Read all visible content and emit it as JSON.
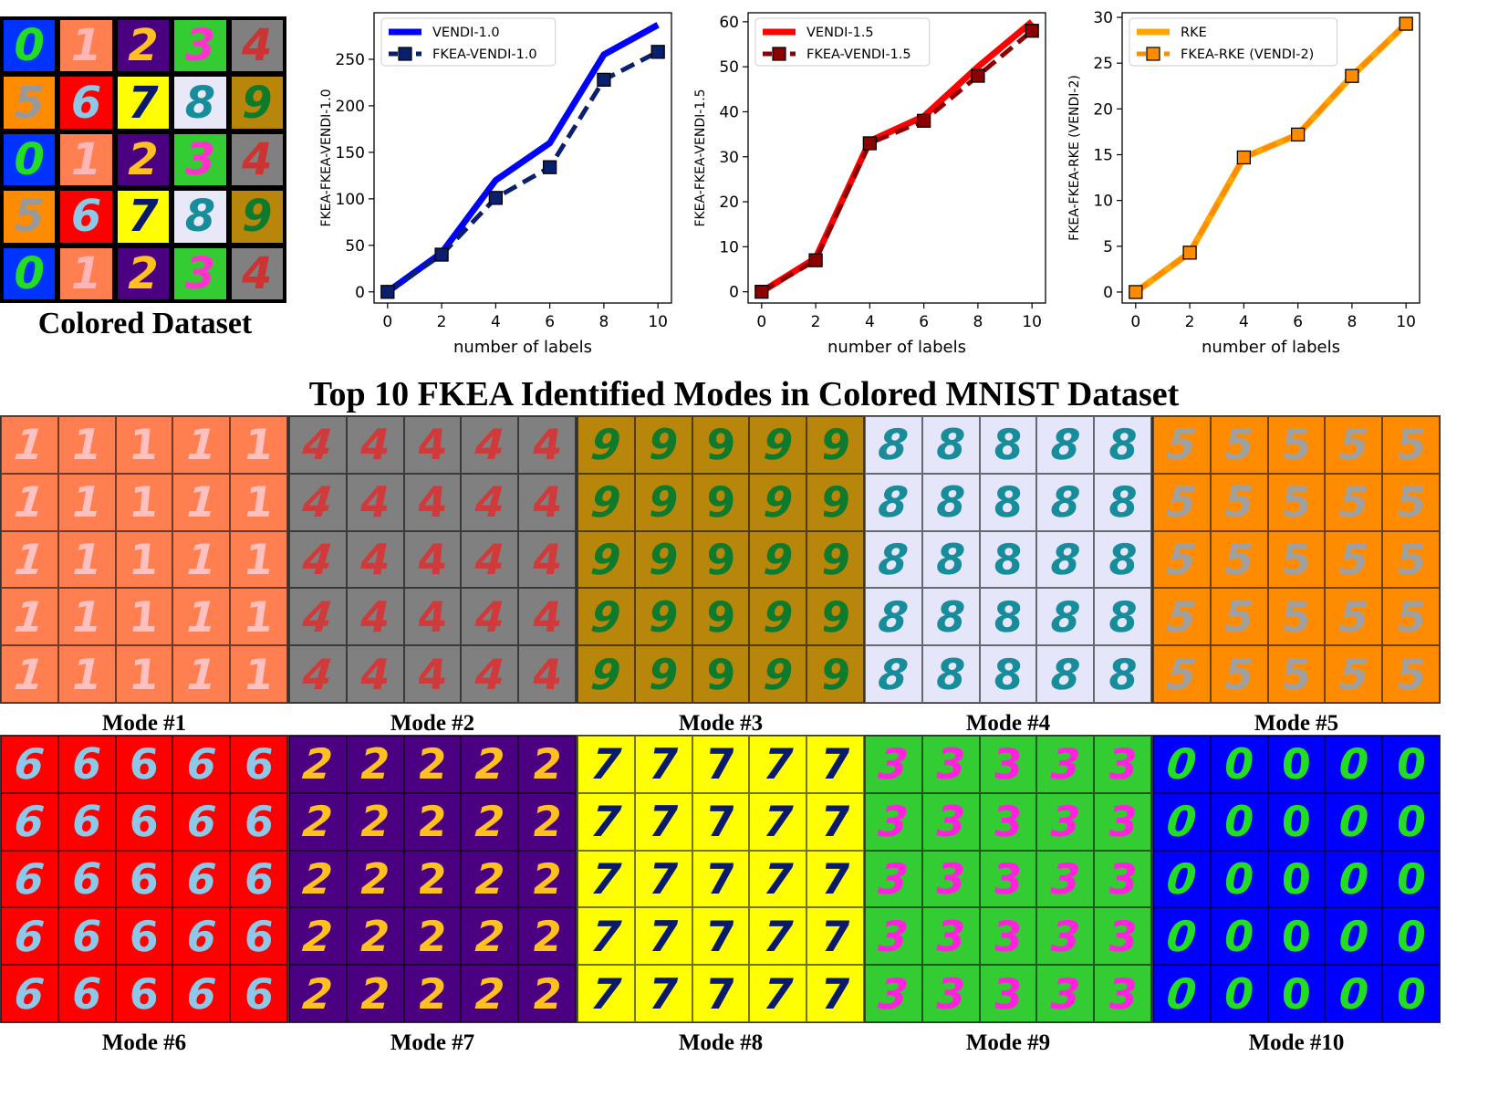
{
  "dataset": {
    "caption": "Colored Dataset",
    "cells": [
      {
        "digit": "0",
        "bg": "#0033ff",
        "fg": "#22dd22"
      },
      {
        "digit": "1",
        "bg": "#ff7f50",
        "fg": "#ffb6b6"
      },
      {
        "digit": "2",
        "bg": "#4b0082",
        "fg": "#ffc020"
      },
      {
        "digit": "3",
        "bg": "#33cc33",
        "fg": "#ff33cc"
      },
      {
        "digit": "4",
        "bg": "#808080",
        "fg": "#cc3333"
      },
      {
        "digit": "5",
        "bg": "#ff8c00",
        "fg": "#999999"
      },
      {
        "digit": "6",
        "bg": "#ff0000",
        "fg": "#8ec8e8"
      },
      {
        "digit": "7",
        "bg": "#ffff00",
        "fg": "#0a1a6a"
      },
      {
        "digit": "8",
        "bg": "#e8e8f8",
        "fg": "#178c9a"
      },
      {
        "digit": "9",
        "bg": "#b8860b",
        "fg": "#0d7a2c"
      },
      {
        "digit": "0",
        "bg": "#0033ff",
        "fg": "#22dd22"
      },
      {
        "digit": "1",
        "bg": "#ff7f50",
        "fg": "#ffb6b6"
      },
      {
        "digit": "2",
        "bg": "#4b0082",
        "fg": "#ffc020"
      },
      {
        "digit": "3",
        "bg": "#33cc33",
        "fg": "#ff33cc"
      },
      {
        "digit": "4",
        "bg": "#808080",
        "fg": "#cc3333"
      },
      {
        "digit": "5",
        "bg": "#ff8c00",
        "fg": "#999999"
      },
      {
        "digit": "6",
        "bg": "#ff0000",
        "fg": "#8ec8e8"
      },
      {
        "digit": "7",
        "bg": "#ffff00",
        "fg": "#0a1a6a"
      },
      {
        "digit": "8",
        "bg": "#e8e8f8",
        "fg": "#178c9a"
      },
      {
        "digit": "9",
        "bg": "#b8860b",
        "fg": "#0d7a2c"
      },
      {
        "digit": "0",
        "bg": "#0033ff",
        "fg": "#22dd22"
      },
      {
        "digit": "1",
        "bg": "#ff7f50",
        "fg": "#ffb6b6"
      },
      {
        "digit": "2",
        "bg": "#4b0082",
        "fg": "#ffc020"
      },
      {
        "digit": "3",
        "bg": "#33cc33",
        "fg": "#ff33cc"
      },
      {
        "digit": "4",
        "bg": "#808080",
        "fg": "#cc3333"
      }
    ]
  },
  "title": "Top 10 FKEA Identified Modes in Colored MNIST Dataset",
  "chart_data": [
    {
      "type": "line",
      "title": "",
      "xlabel": "number of labels",
      "ylabel": "FKEA-FKEA-VENDI-1.0",
      "x": [
        0,
        2,
        4,
        6,
        8,
        10
      ],
      "xlim": [
        -0.5,
        10.5
      ],
      "ylim": [
        -12,
        300
      ],
      "xticks": [
        0,
        2,
        4,
        6,
        8,
        10
      ],
      "yticks": [
        0,
        50,
        100,
        150,
        200,
        250
      ],
      "legend": "top-left",
      "series": [
        {
          "name": "VENDI-1.0",
          "values": [
            0,
            42,
            120,
            160,
            255,
            287
          ],
          "color": "#0000ff",
          "style": "solid",
          "marker": "none"
        },
        {
          "name": "FKEA-VENDI-1.0",
          "values": [
            0,
            40,
            101,
            134,
            228,
            258
          ],
          "color": "#0a1f6e",
          "style": "dashed",
          "marker": "square"
        }
      ]
    },
    {
      "type": "line",
      "title": "",
      "xlabel": "number of labels",
      "ylabel": "FKEA-FKEA-VENDI-1.5",
      "x": [
        0,
        2,
        4,
        6,
        8,
        10
      ],
      "xlim": [
        -0.5,
        10.5
      ],
      "ylim": [
        -2.5,
        62
      ],
      "xticks": [
        0,
        2,
        4,
        6,
        8,
        10
      ],
      "yticks": [
        0,
        10,
        20,
        30,
        40,
        50,
        60
      ],
      "legend": "top-left",
      "series": [
        {
          "name": "VENDI-1.5",
          "values": [
            0,
            7.5,
            33.5,
            39,
            50,
            60
          ],
          "color": "#ff0000",
          "style": "solid",
          "marker": "none"
        },
        {
          "name": "FKEA-VENDI-1.5",
          "values": [
            0,
            7,
            33,
            38,
            48,
            58
          ],
          "color": "#8b0000",
          "style": "dashed",
          "marker": "square"
        }
      ]
    },
    {
      "type": "line",
      "title": "",
      "xlabel": "number of labels",
      "ylabel": "FKEA-FKEA-RKE (VENDI-2)",
      "x": [
        0,
        2,
        4,
        6,
        8,
        10
      ],
      "xlim": [
        -0.5,
        10.5
      ],
      "ylim": [
        -1.2,
        30.5
      ],
      "xticks": [
        0,
        2,
        4,
        6,
        8,
        10
      ],
      "yticks": [
        0,
        5,
        10,
        15,
        20,
        25,
        30
      ],
      "legend": "top-left",
      "series": [
        {
          "name": "RKE",
          "values": [
            0,
            4.3,
            14.7,
            17.2,
            23.6,
            29.3
          ],
          "color": "#ffa500",
          "style": "solid",
          "marker": "none"
        },
        {
          "name": "FKEA-RKE (VENDI-2)",
          "values": [
            0,
            4.3,
            14.7,
            17.2,
            23.6,
            29.3
          ],
          "color": "#ff8c00",
          "style": "dashed",
          "marker": "square"
        }
      ]
    }
  ],
  "modes": [
    {
      "label": "Mode #1",
      "digit": "1",
      "bg": "#ff7f50",
      "fg": "#ffc0c0"
    },
    {
      "label": "Mode #2",
      "digit": "4",
      "bg": "#808080",
      "fg": "#d03a3a"
    },
    {
      "label": "Mode #3",
      "digit": "9",
      "bg": "#b8860b",
      "fg": "#0d7a2c"
    },
    {
      "label": "Mode #4",
      "digit": "8",
      "bg": "#e6e6fa",
      "fg": "#178c9a"
    },
    {
      "label": "Mode #5",
      "digit": "5",
      "bg": "#ff8c00",
      "fg": "#a0a0a0"
    },
    {
      "label": "Mode #6",
      "digit": "6",
      "bg": "#ff0000",
      "fg": "#8ec8e8"
    },
    {
      "label": "Mode #7",
      "digit": "2",
      "bg": "#4b0082",
      "fg": "#ffc020"
    },
    {
      "label": "Mode #8",
      "digit": "7",
      "bg": "#ffff00",
      "fg": "#0a1a6a"
    },
    {
      "label": "Mode #9",
      "digit": "3",
      "bg": "#33cc33",
      "fg": "#ff22dd"
    },
    {
      "label": "Mode #10",
      "digit": "0",
      "bg": "#0000ff",
      "fg": "#22dd22"
    }
  ]
}
